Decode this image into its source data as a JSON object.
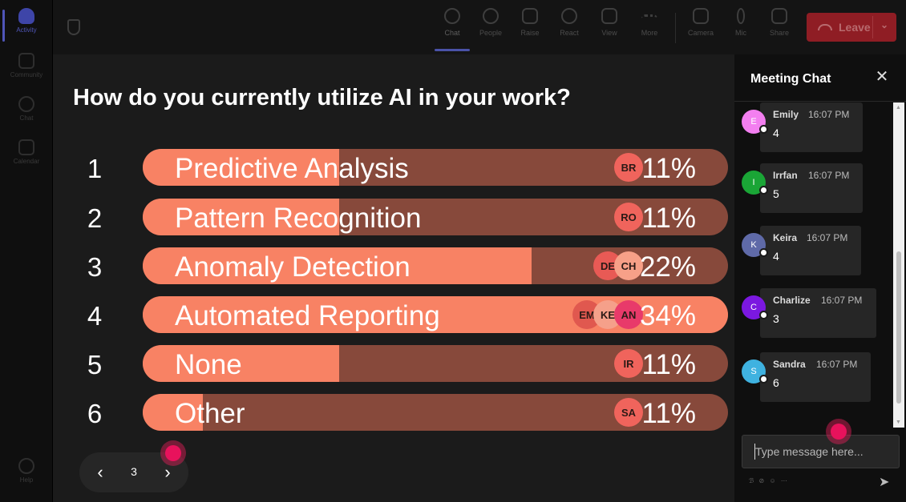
{
  "rail": {
    "items": [
      {
        "label": "Activity",
        "icon": "bell-icon",
        "active": true
      },
      {
        "label": "Community",
        "icon": "community-icon"
      },
      {
        "label": "Chat",
        "icon": "chat-icon"
      },
      {
        "label": "Calendar",
        "icon": "calendar-icon"
      }
    ],
    "help": {
      "label": "Help",
      "icon": "help-icon"
    }
  },
  "toolbar": {
    "chat": "Chat",
    "people": "People",
    "raise": "Raise",
    "react": "React",
    "view": "View",
    "more": "More",
    "camera": "Camera",
    "mic": "Mic",
    "share": "Share",
    "leave": "Leave",
    "leave_chevron": "⌄"
  },
  "poll": {
    "question": "How do you currently utilize AI in your work?",
    "rows": [
      {
        "num": "1",
        "label": "Predictive Analysis",
        "pct": "11%",
        "value": 11,
        "avatars": [
          {
            "initials": "BR",
            "color": "#f0645c"
          }
        ]
      },
      {
        "num": "2",
        "label": "Pattern Recognition",
        "pct": "11%",
        "value": 11,
        "avatars": [
          {
            "initials": "RO",
            "color": "#f0645c"
          }
        ]
      },
      {
        "num": "3",
        "label": "Anomaly Detection",
        "pct": "22%",
        "value": 22,
        "avatars": [
          {
            "initials": "DE",
            "color": "#e85a55"
          },
          {
            "initials": "CH",
            "color": "#f7a088"
          }
        ]
      },
      {
        "num": "4",
        "label": "Automated Reporting",
        "pct": "34%",
        "value": 34,
        "avatars": [
          {
            "initials": "EM",
            "color": "#e0584f"
          },
          {
            "initials": "KE",
            "color": "#f5a08a"
          },
          {
            "initials": "AN",
            "color": "#e83a6a"
          }
        ]
      },
      {
        "num": "5",
        "label": "None",
        "pct": "11%",
        "value": 11,
        "avatars": [
          {
            "initials": "IR",
            "color": "#f0645c"
          }
        ]
      },
      {
        "num": "6",
        "label": "Other",
        "pct": "11%",
        "value": 11,
        "avatars": [
          {
            "initials": "SA",
            "color": "#f0645c"
          }
        ]
      }
    ],
    "colors": {
      "fill": "#f88264",
      "track": "#87493b"
    }
  },
  "pager": {
    "prev": "‹",
    "page": "3",
    "next": "›"
  },
  "chat": {
    "title": "Meeting Chat",
    "close": "✕",
    "messages": [
      {
        "initial": "E",
        "name": "Emily",
        "time": "16:07 PM",
        "body": "4",
        "color": "#f37ff0"
      },
      {
        "initial": "I",
        "name": "Irrfan",
        "time": "16:07 PM",
        "body": "5",
        "color": "#1aa536"
      },
      {
        "initial": "K",
        "name": "Keira",
        "time": "16:07 PM",
        "body": "4",
        "color": "#5f6aa8"
      },
      {
        "initial": "C",
        "name": "Charlize",
        "time": "16:07 PM",
        "body": "3",
        "color": "#7b18e0"
      },
      {
        "initial": "S",
        "name": "Sandra",
        "time": "16:07 PM",
        "body": "6",
        "color": "#3fb2e0"
      }
    ],
    "input_placeholder": "Type message here...",
    "format_icons": "ℬ ⊘ ☺ ⋯",
    "send": "➤"
  }
}
